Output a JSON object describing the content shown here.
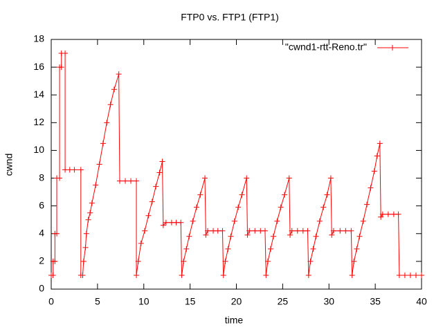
{
  "chart_data": {
    "type": "line",
    "title": "FTP0 vs. FTP1 (FTP1)",
    "x_label": "time",
    "y_label": "cwnd",
    "legend": "top-right",
    "xlim": [
      0,
      40
    ],
    "ylim": [
      0,
      18
    ],
    "xticks": [
      0,
      5,
      10,
      15,
      20,
      25,
      30,
      35,
      40
    ],
    "yticks": [
      0,
      2,
      4,
      6,
      8,
      10,
      12,
      14,
      16,
      18
    ],
    "series": [
      {
        "name": "\"cwnd1-rtt-Reno.tr\"",
        "color": "#ff0000",
        "x": [
          0,
          0.2,
          0.2,
          0.4,
          0.4,
          0.6,
          0.6,
          0.9,
          0.9,
          1.1,
          1.1,
          1.5,
          1.5,
          2.0,
          2.5,
          3.2,
          3.2,
          3.4,
          3.5,
          3.7,
          3.8,
          4.0,
          4.2,
          4.4,
          4.8,
          5.2,
          5.6,
          6.0,
          6.4,
          6.8,
          7.3,
          7.4,
          8.0,
          8.6,
          9.2,
          9.2,
          9.4,
          9.7,
          10.1,
          10.5,
          10.9,
          11.3,
          11.7,
          12.0,
          12.1,
          12.4,
          13.0,
          13.5,
          14.0,
          14.1,
          14.3,
          14.6,
          14.9,
          15.3,
          15.7,
          16.1,
          16.6,
          16.7,
          16.9,
          17.5,
          18.0,
          18.5,
          18.6,
          18.8,
          19.1,
          19.4,
          19.8,
          20.2,
          20.6,
          21.1,
          21.2,
          21.4,
          22.0,
          22.6,
          23.1,
          23.2,
          23.4,
          23.7,
          24.0,
          24.4,
          24.8,
          25.2,
          25.7,
          25.8,
          26.0,
          26.6,
          27.2,
          27.7,
          27.8,
          28.0,
          28.3,
          28.6,
          29.0,
          29.4,
          29.8,
          30.2,
          30.3,
          30.5,
          31.2,
          31.8,
          32.4,
          32.5,
          32.7,
          33.0,
          33.3,
          33.7,
          34.1,
          34.5,
          34.9,
          35.2,
          35.5,
          35.6,
          35.8,
          36.4,
          37.0,
          37.5,
          37.6,
          38.2,
          38.8,
          39.4,
          40.0
        ],
        "values": [
          1,
          1,
          2,
          2,
          4,
          4,
          8,
          8,
          16,
          16,
          17,
          17,
          8.6,
          8.6,
          8.6,
          8.6,
          1,
          1,
          2,
          3,
          4,
          5,
          5.5,
          6.2,
          7.5,
          9,
          10.5,
          12,
          13.3,
          14.4,
          15.5,
          7.8,
          7.8,
          7.8,
          7.8,
          1,
          2,
          3.3,
          4.2,
          5.3,
          6.3,
          7.4,
          8.4,
          9.2,
          4.6,
          4.8,
          4.8,
          4.8,
          4.8,
          1,
          2,
          2.9,
          3.8,
          4.9,
          5.9,
          6.8,
          8,
          3.9,
          4.2,
          4.2,
          4.2,
          4.2,
          1,
          2,
          2.9,
          3.8,
          4.9,
          5.9,
          6.8,
          8,
          3.9,
          4.2,
          4.2,
          4.2,
          4.2,
          1,
          2,
          2.9,
          3.8,
          4.9,
          5.9,
          6.8,
          8,
          3.9,
          4.2,
          4.2,
          4.2,
          4.2,
          1,
          2,
          2.9,
          3.8,
          4.9,
          5.9,
          6.8,
          8,
          3.9,
          4.2,
          4.2,
          4.2,
          4.2,
          1,
          2,
          2.9,
          3.8,
          4.9,
          6.1,
          7.3,
          8.5,
          9.6,
          10.5,
          5.2,
          5.4,
          5.4,
          5.4,
          5.4,
          1,
          1,
          1,
          1,
          1
        ]
      }
    ]
  }
}
